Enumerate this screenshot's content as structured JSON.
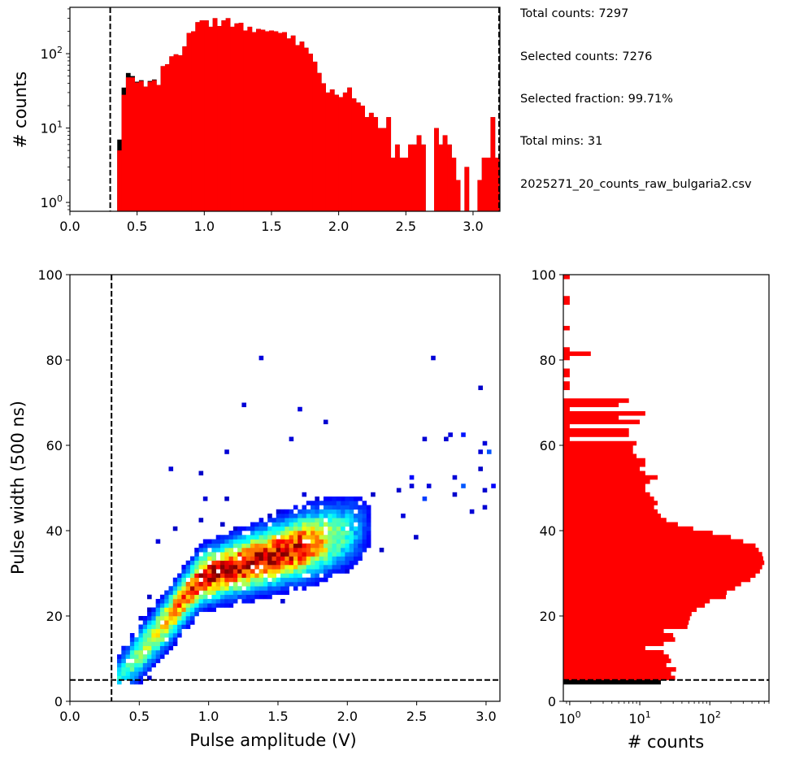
{
  "info": {
    "total_counts": "Total counts: 7297",
    "selected_counts": "Selected counts: 7276",
    "selected_fraction": "Selected fraction: 99.71%",
    "total_mins": "Total mins: 31",
    "filename": "2025271_20_counts_raw_bulgaria2.csv"
  },
  "colors": {
    "selected": "#ff0000",
    "rejected": "#000000",
    "cut_line": "#000000"
  },
  "chart_data": [
    {
      "type": "bar",
      "name": "amplitude-histogram",
      "xlabel": "",
      "ylabel": "# counts",
      "xlim": [
        0.0,
        3.2
      ],
      "ylim": [
        0.76,
        420
      ],
      "yscale": "log",
      "xticks": [
        "0.0",
        "0.5",
        "1.0",
        "1.5",
        "2.0",
        "2.5",
        "3.0"
      ],
      "xtick_values": [
        0.0,
        0.5,
        1.0,
        1.5,
        2.0,
        2.5,
        3.0
      ],
      "yticks": [
        "10^0",
        "10^1",
        "10^2"
      ],
      "ytick_values": [
        1,
        10,
        100
      ],
      "bin_start": 0.32,
      "bin_width": 0.0323,
      "series": [
        {
          "name": "all",
          "color": "#000000",
          "values": [
            0,
            7,
            35,
            55,
            50,
            42,
            44,
            36,
            43,
            45,
            38,
            68,
            72,
            92,
            98,
            95,
            125,
            190,
            200,
            265,
            280,
            280,
            230,
            300,
            235,
            280,
            300,
            230,
            255,
            260,
            205,
            230,
            195,
            215,
            210,
            200,
            205,
            200,
            190,
            195,
            160,
            175,
            130,
            145,
            120,
            100,
            78,
            55,
            40,
            30,
            33,
            28,
            26,
            30,
            35,
            25,
            22,
            20,
            14,
            16,
            14,
            10,
            10,
            14,
            4,
            6,
            4,
            4,
            6,
            6,
            8,
            6,
            0,
            0,
            10,
            6,
            8,
            6,
            4,
            2,
            0,
            3,
            0,
            0,
            2,
            4,
            4,
            14,
            4
          ]
        },
        {
          "name": "selected",
          "color": "#ff0000",
          "values": [
            0,
            5,
            28,
            48,
            48,
            41,
            43,
            36,
            42,
            44,
            38,
            68,
            72,
            92,
            98,
            95,
            125,
            190,
            200,
            265,
            280,
            280,
            230,
            300,
            235,
            280,
            300,
            230,
            255,
            260,
            205,
            230,
            195,
            215,
            210,
            200,
            205,
            200,
            190,
            195,
            160,
            175,
            130,
            145,
            120,
            100,
            78,
            55,
            40,
            30,
            33,
            28,
            26,
            30,
            35,
            25,
            22,
            20,
            14,
            16,
            14,
            10,
            10,
            14,
            4,
            6,
            4,
            4,
            6,
            6,
            8,
            6,
            0,
            0,
            10,
            6,
            8,
            6,
            4,
            2,
            0,
            3,
            0,
            0,
            2,
            4,
            4,
            14,
            4
          ]
        }
      ],
      "cut_lines": [
        {
          "axis": "x",
          "value": 0.3
        },
        {
          "axis": "x",
          "value": 3.2
        }
      ]
    },
    {
      "type": "heatmap",
      "name": "amplitude-width-2d-histogram",
      "xlabel": "Pulse amplitude (V)",
      "ylabel": "Pulse width (500 ns)",
      "xlim": [
        0.0,
        3.1
      ],
      "ylim": [
        0,
        100
      ],
      "xticks": [
        "0.0",
        "0.5",
        "1.0",
        "1.5",
        "2.0",
        "2.5",
        "3.0"
      ],
      "xtick_values": [
        0.0,
        0.5,
        1.0,
        1.5,
        2.0,
        2.5,
        3.0
      ],
      "yticks": [
        "0",
        "20",
        "40",
        "60",
        "80",
        "100"
      ],
      "ytick_values": [
        0,
        20,
        40,
        60,
        80,
        100
      ],
      "colormap": "jet",
      "trend": {
        "description_points": [
          [
            0.4,
            5
          ],
          [
            0.6,
            15
          ],
          [
            0.9,
            28
          ],
          [
            1.2,
            32
          ],
          [
            1.5,
            35
          ],
          [
            1.8,
            38
          ]
        ]
      },
      "peak_region": {
        "x": [
          0.9,
          1.8
        ],
        "y": [
          28,
          38
        ]
      },
      "cut_lines": [
        {
          "axis": "x",
          "value": 0.3
        },
        {
          "axis": "y",
          "value": 5
        }
      ]
    },
    {
      "type": "bar",
      "orientation": "horizontal",
      "name": "width-histogram",
      "xlabel": "# counts",
      "ylabel": "",
      "xscale": "log",
      "xlim": [
        0.81,
        700
      ],
      "ylim": [
        0,
        100
      ],
      "xticks": [
        "10^0",
        "10^1",
        "10^2"
      ],
      "xtick_values": [
        1,
        10,
        100
      ],
      "yticks": [
        "0",
        "20",
        "40",
        "60",
        "80",
        "100"
      ],
      "ytick_values": [
        0,
        20,
        40,
        60,
        80,
        100
      ],
      "bin_start": 4,
      "bin_width": 1,
      "series": [
        {
          "name": "rejected",
          "color": "#000000",
          "values": [
            20
          ]
        },
        {
          "name": "selected",
          "color": "#ff0000",
          "values": [
            32,
            28,
            33,
            24,
            28,
            26,
            22,
            12,
            22,
            32,
            30,
            22,
            48,
            50,
            52,
            55,
            65,
            85,
            100,
            170,
            175,
            230,
            280,
            380,
            450,
            520,
            560,
            600,
            580,
            560,
            500,
            450,
            300,
            200,
            110,
            58,
            35,
            24,
            20,
            18,
            16,
            18,
            16,
            14,
            12,
            12,
            14,
            18,
            12,
            10,
            12,
            12,
            9,
            8,
            8,
            9,
            1,
            7,
            7,
            1,
            10,
            5,
            12,
            1,
            5,
            7,
            0,
            0,
            1,
            1,
            0,
            1,
            1,
            0,
            0,
            1,
            2,
            1,
            0,
            0,
            0,
            0,
            1,
            0,
            0,
            0,
            0,
            0,
            1,
            1,
            0,
            0,
            0,
            0,
            1,
            0
          ]
        }
      ],
      "cut_lines": [
        {
          "axis": "y",
          "value": 5
        }
      ]
    }
  ],
  "labels": {
    "top_ylabel": "# counts",
    "main_xlabel": "Pulse amplitude (V)",
    "main_ylabel": "Pulse width (500 ns)",
    "right_xlabel": "# counts"
  }
}
